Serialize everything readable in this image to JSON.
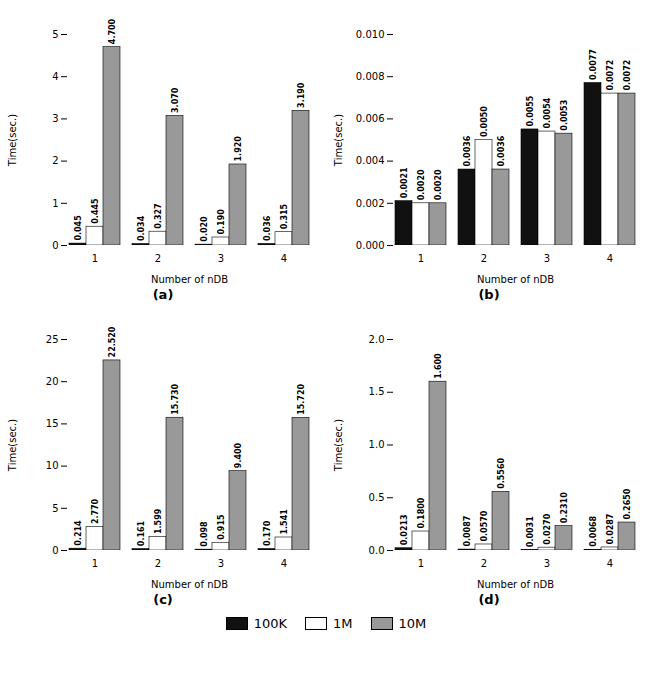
{
  "chart_data": [
    {
      "type": "bar",
      "title": "(a)",
      "xlabel": "Number of nDB",
      "ylabel": "Time(sec.)",
      "categories": [
        "1",
        "2",
        "3",
        "4"
      ],
      "series": [
        {
          "name": "100K",
          "color": "#111111",
          "values": [
            0.045,
            0.034,
            0.02,
            0.036
          ],
          "value_labels": [
            "0.045",
            "0.034",
            "0.020",
            "0.036"
          ]
        },
        {
          "name": "1M",
          "color": "#ffffff",
          "values": [
            0.445,
            0.327,
            0.19,
            0.315
          ],
          "value_labels": [
            "0.445",
            "0.327",
            "0.190",
            "0.315"
          ]
        },
        {
          "name": "10M",
          "color": "#999999",
          "values": [
            4.7,
            3.07,
            1.92,
            3.19
          ],
          "value_labels": [
            "4.700",
            "3.070",
            "1.920",
            "3.190"
          ]
        }
      ],
      "ylim": [
        0,
        5
      ],
      "yticks": [
        0,
        1,
        2,
        3,
        4,
        5
      ],
      "grid": false,
      "data_labels": true,
      "legend": "bottom"
    },
    {
      "type": "bar",
      "title": "(b)",
      "xlabel": "Number of nDB",
      "ylabel": "Time(sec.)",
      "categories": [
        "1",
        "2",
        "3",
        "4"
      ],
      "series": [
        {
          "name": "100K",
          "color": "#111111",
          "values": [
            0.0021,
            0.0036,
            0.0055,
            0.0077
          ],
          "value_labels": [
            "0.0021",
            "0.0036",
            "0.0055",
            "0.0077"
          ]
        },
        {
          "name": "1M",
          "color": "#ffffff",
          "values": [
            0.002,
            0.005,
            0.0054,
            0.0072
          ],
          "value_labels": [
            "0.0020",
            "0.0050",
            "0.0054",
            "0.0072"
          ]
        },
        {
          "name": "10M",
          "color": "#999999",
          "values": [
            0.002,
            0.0036,
            0.0053,
            0.0072
          ],
          "value_labels": [
            "0.0020",
            "0.0036",
            "0.0053",
            "0.0072"
          ]
        }
      ],
      "ylim": [
        0,
        0.01
      ],
      "yticks": [
        {
          "value": 0,
          "label": "0.000"
        },
        {
          "value": 0.002,
          "label": "0.002"
        },
        {
          "value": 0.004,
          "label": "0.004"
        },
        {
          "value": 0.006,
          "label": "0.006"
        },
        {
          "value": 0.008,
          "label": "0.008"
        },
        {
          "value": 0.01,
          "label": "0.010"
        }
      ],
      "grid": false,
      "data_labels": true,
      "legend": "bottom"
    },
    {
      "type": "bar",
      "title": "(c)",
      "xlabel": "Number of nDB",
      "ylabel": "Time(sec.)",
      "categories": [
        "1",
        "2",
        "3",
        "4"
      ],
      "series": [
        {
          "name": "100K",
          "color": "#111111",
          "values": [
            0.214,
            0.161,
            0.098,
            0.17
          ],
          "value_labels": [
            "0.214",
            "0.161",
            "0.098",
            "0.170"
          ]
        },
        {
          "name": "1M",
          "color": "#ffffff",
          "values": [
            2.77,
            1.599,
            0.915,
            1.541
          ],
          "value_labels": [
            "2.770",
            "1.599",
            "0.915",
            "1.541"
          ]
        },
        {
          "name": "10M",
          "color": "#999999",
          "values": [
            22.52,
            15.73,
            9.4,
            15.72
          ],
          "value_labels": [
            "22.520",
            "15.730",
            "9.400",
            "15.720"
          ]
        }
      ],
      "ylim": [
        0,
        25
      ],
      "yticks": [
        0,
        5,
        10,
        15,
        20,
        25
      ],
      "grid": false,
      "data_labels": true,
      "legend": "bottom"
    },
    {
      "type": "bar",
      "title": "(d)",
      "xlabel": "Number of nDB",
      "ylabel": "Time(sec.)",
      "categories": [
        "1",
        "2",
        "3",
        "4"
      ],
      "series": [
        {
          "name": "100K",
          "color": "#111111",
          "values": [
            0.0213,
            0.0087,
            0.0031,
            0.0068
          ],
          "value_labels": [
            "0.0213",
            "0.0087",
            "0.0031",
            "0.0068"
          ]
        },
        {
          "name": "1M",
          "color": "#ffffff",
          "values": [
            0.18,
            0.057,
            0.027,
            0.0287
          ],
          "value_labels": [
            "0.1800",
            "0.0570",
            "0.0270",
            "0.0287"
          ]
        },
        {
          "name": "10M",
          "color": "#999999",
          "values": [
            1.6,
            0.556,
            0.231,
            0.265
          ],
          "value_labels": [
            "1.600",
            "0.5560",
            "0.2310",
            "0.2650"
          ]
        }
      ],
      "ylim": [
        0,
        2.0
      ],
      "yticks": [
        {
          "value": 0,
          "label": "0.0"
        },
        0.5,
        {
          "value": 1.0,
          "label": "1.0"
        },
        {
          "value": 1.5,
          "label": "1.5"
        },
        {
          "value": 2.0,
          "label": "2.0"
        }
      ],
      "grid": false,
      "data_labels": true,
      "legend": "bottom"
    }
  ]
}
